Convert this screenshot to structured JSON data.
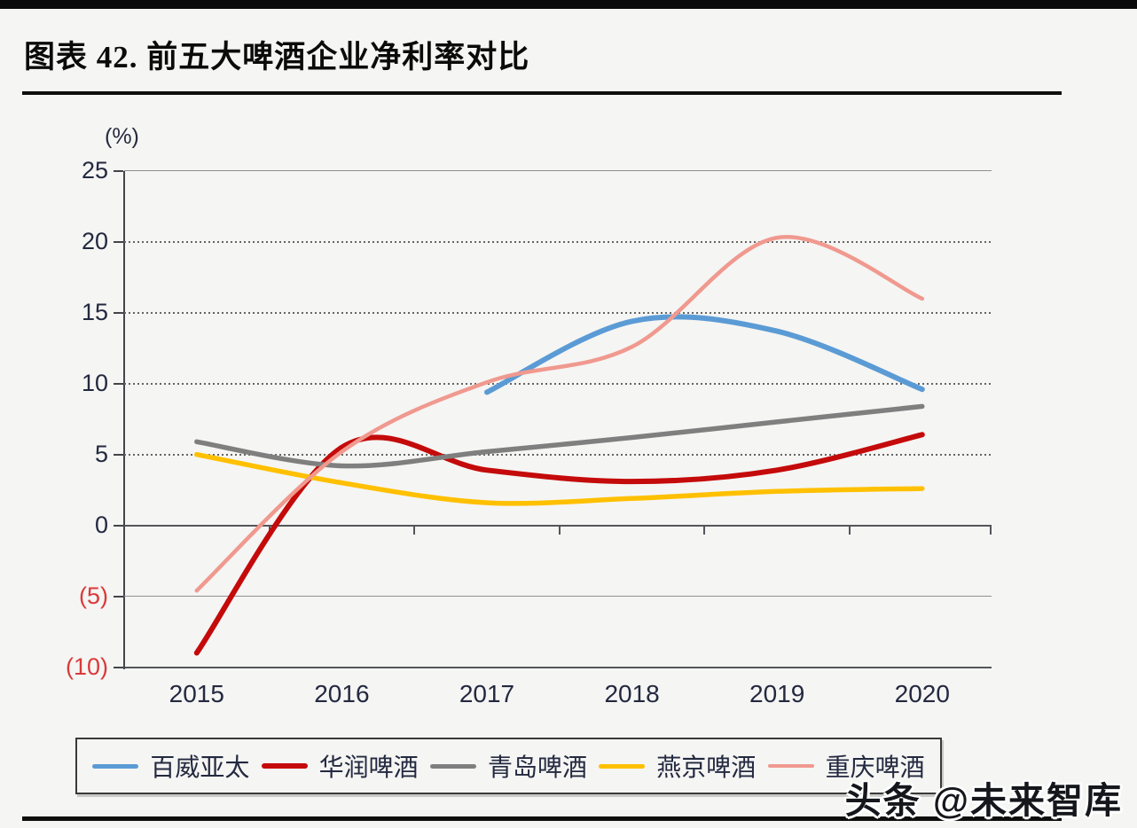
{
  "page": {
    "title": "图表 42. 前五大啤酒企业净利率对比",
    "watermark": "头条 @未来智库"
  },
  "chart_data": {
    "type": "line",
    "title": "前五大啤酒企业净利率对比",
    "unit_label": "(%)",
    "xlabel": "",
    "ylabel": "(%)",
    "x": [
      2015,
      2016,
      2017,
      2018,
      2019,
      2020
    ],
    "x_tick_labels": [
      "2015",
      "2016",
      "2017",
      "2018",
      "2019",
      "2020"
    ],
    "ylim": [
      -10,
      25
    ],
    "y_ticks": [
      25,
      20,
      15,
      10,
      5,
      0,
      -5,
      -10
    ],
    "y_tick_labels": [
      "25",
      "20",
      "15",
      "10",
      "5",
      "0",
      "(5)",
      "(10)"
    ],
    "grid": true,
    "legend_position": "bottom",
    "negative_tick_color": "#d93a3a",
    "series": [
      {
        "name": "百威亚太",
        "color": "#5B9BD5",
        "x": [
          2017,
          2018,
          2019,
          2020
        ],
        "values": [
          9.4,
          14.4,
          13.7,
          9.6
        ]
      },
      {
        "name": "华润啤酒",
        "color": "#C40A0A",
        "x": [
          2015,
          2016,
          2017,
          2018,
          2019,
          2020
        ],
        "values": [
          -9.0,
          5.5,
          3.9,
          3.1,
          3.9,
          6.4
        ]
      },
      {
        "name": "青岛啤酒",
        "color": "#7F7F7F",
        "x": [
          2015,
          2016,
          2017,
          2018,
          2019,
          2020
        ],
        "values": [
          5.9,
          4.2,
          5.2,
          6.2,
          7.3,
          8.4
        ]
      },
      {
        "name": "燕京啤酒",
        "color": "#FFC000",
        "x": [
          2015,
          2016,
          2017,
          2018,
          2019,
          2020
        ],
        "values": [
          5.0,
          3.0,
          1.6,
          1.9,
          2.4,
          2.6
        ]
      },
      {
        "name": "重庆啤酒",
        "color": "#F0998F",
        "x": [
          2015,
          2016,
          2017,
          2018,
          2019,
          2020
        ],
        "values": [
          -4.6,
          5.2,
          10.1,
          12.6,
          20.3,
          16.0
        ]
      }
    ]
  }
}
